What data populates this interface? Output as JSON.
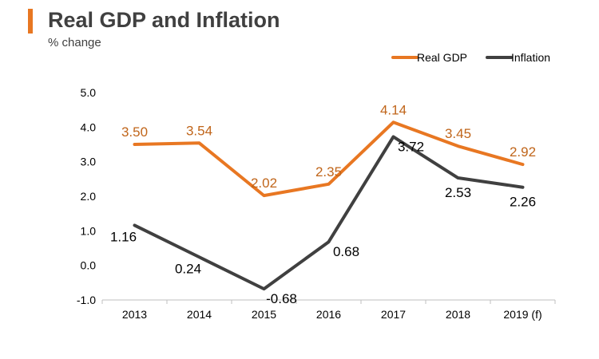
{
  "header": {
    "title": "Real GDP and Inflation",
    "subtitle": "% change",
    "accent_color": "#e87722"
  },
  "chart_data": {
    "type": "line",
    "title": "Real GDP and Inflation",
    "subtitle": "% change",
    "categories": [
      "2013",
      "2014",
      "2015",
      "2016",
      "2017",
      "2018",
      "2019 (f)"
    ],
    "ylim": [
      -1.0,
      5.0
    ],
    "yticks": [
      -1.0,
      0.0,
      1.0,
      2.0,
      3.0,
      4.0,
      5.0
    ],
    "ytick_labels": [
      "-1.0",
      "0.0",
      "1.0",
      "2.0",
      "3.0",
      "4.0",
      "5.0"
    ],
    "xlabel": "",
    "ylabel": "",
    "grid": false,
    "legend_position": "top-right",
    "series": [
      {
        "name": "Real GDP",
        "color": "#e87722",
        "label_color": "#c0651a",
        "values": [
          3.5,
          3.54,
          2.02,
          2.35,
          4.14,
          3.45,
          2.92
        ],
        "labels": [
          "3.50",
          "3.54",
          "2.02",
          "2.35",
          "4.14",
          "3.45",
          "2.92"
        ],
        "label_placement": [
          "above",
          "above",
          "above",
          "above",
          "above",
          "above",
          "above"
        ]
      },
      {
        "name": "Inflation",
        "color": "#404040",
        "label_color": "#000000",
        "values": [
          1.16,
          0.24,
          -0.68,
          0.68,
          3.72,
          2.53,
          2.26
        ],
        "labels": [
          "1.16",
          "0.24",
          "-0.68",
          "0.68",
          "3.72",
          "2.53",
          "2.26"
        ],
        "label_placement": [
          "below-left",
          "below-left",
          "below-right",
          "below-right",
          "below-right",
          "below",
          "below"
        ]
      }
    ]
  }
}
